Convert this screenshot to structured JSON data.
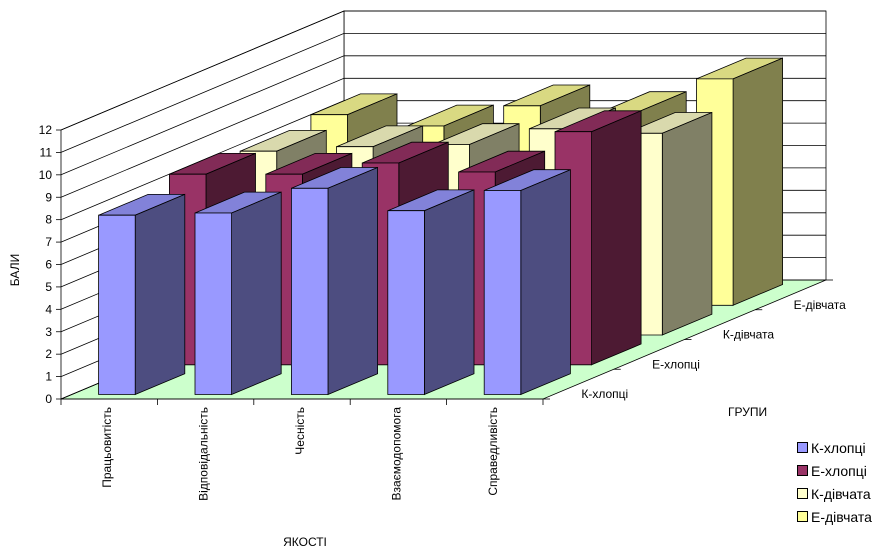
{
  "chart_data": {
    "type": "bar",
    "subtype": "3d-clustered-depth",
    "categories": [
      "Працьовитість",
      "Відповідальність",
      "Чесність",
      "Взаємодопомога",
      "Справедливість"
    ],
    "depth_categories": [
      "К-хлопці",
      "Е-хлопці",
      "К-дівчата",
      "Е-дівчата"
    ],
    "series": [
      {
        "name": "К-хлопці",
        "values": [
          8.0,
          8.1,
          9.2,
          8.2,
          9.1
        ],
        "color": "#9999ff"
      },
      {
        "name": "Е-хлопці",
        "values": [
          8.5,
          8.5,
          9.0,
          8.6,
          10.4
        ],
        "color": "#993366"
      },
      {
        "name": "К-дівчата",
        "values": [
          8.2,
          8.4,
          8.5,
          9.2,
          9.0
        ],
        "color": "#ffffcc"
      },
      {
        "name": "Е-дівчата",
        "values": [
          8.5,
          8.0,
          8.9,
          8.6,
          10.1
        ],
        "color": "#ffff99"
      }
    ],
    "yticks": [
      "0",
      "1",
      "2",
      "3",
      "4",
      "5",
      "6",
      "7",
      "8",
      "9",
      "10",
      "11",
      "12"
    ],
    "ylim": [
      0,
      12
    ],
    "xlabel": "ЯКОСТІ",
    "ylabel": "БАЛИ",
    "zlabel": "ГРУПИ",
    "grid": true,
    "legend_position": "bottom-right"
  },
  "legend": {
    "items": [
      {
        "label": "К-хлопці",
        "color": "#9999ff"
      },
      {
        "label": "Е-хлопці",
        "color": "#993366"
      },
      {
        "label": "К-дівчата",
        "color": "#ffffcc"
      },
      {
        "label": "Е-дівчата",
        "color": "#ffff99"
      }
    ]
  }
}
